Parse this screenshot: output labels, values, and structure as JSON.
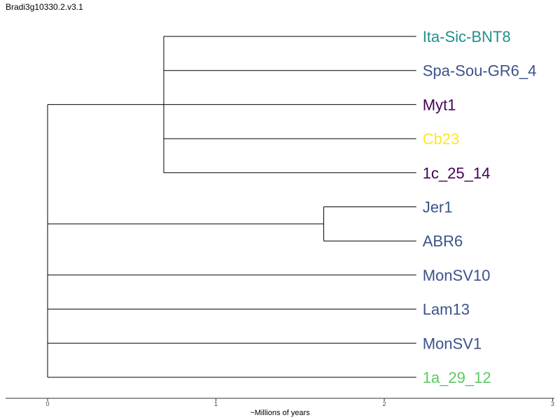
{
  "title": "Bradi3g10330.2.v3.1",
  "axis": {
    "label": "~Millions of years",
    "ticks": [
      "0",
      "1",
      "2",
      "3"
    ],
    "range": [
      0,
      3
    ]
  },
  "tree": {
    "tips": [
      {
        "name": "Ita-Sic-BNT8",
        "color": "#21908c"
      },
      {
        "name": "Spa-Sou-GR6_4",
        "color": "#3b528b"
      },
      {
        "name": "Myt1",
        "color": "#440154"
      },
      {
        "name": "Cb23",
        "color": "#fde725"
      },
      {
        "name": "1c_25_14",
        "color": "#440154"
      },
      {
        "name": "Jer1",
        "color": "#3b528b"
      },
      {
        "name": "ABR6",
        "color": "#3b528b"
      },
      {
        "name": "MonSV10",
        "color": "#3b528b"
      },
      {
        "name": "Lam13",
        "color": "#3b528b"
      },
      {
        "name": "MonSV1",
        "color": "#3b528b"
      },
      {
        "name": "1a_29_12",
        "color": "#5dc863"
      }
    ],
    "clades": [
      {
        "node_time": 0.69,
        "tips": [
          0,
          1,
          2,
          3,
          4
        ]
      },
      {
        "node_time": 1.64,
        "tips": [
          5,
          6
        ]
      },
      {
        "node_time": 0.0,
        "tips": [
          7
        ]
      },
      {
        "node_time": 0.0,
        "tips": [
          8
        ]
      },
      {
        "node_time": 0.0,
        "tips": [
          9
        ]
      },
      {
        "node_time": 0.0,
        "tips": [
          10
        ]
      }
    ],
    "tip_time": 2.19
  }
}
